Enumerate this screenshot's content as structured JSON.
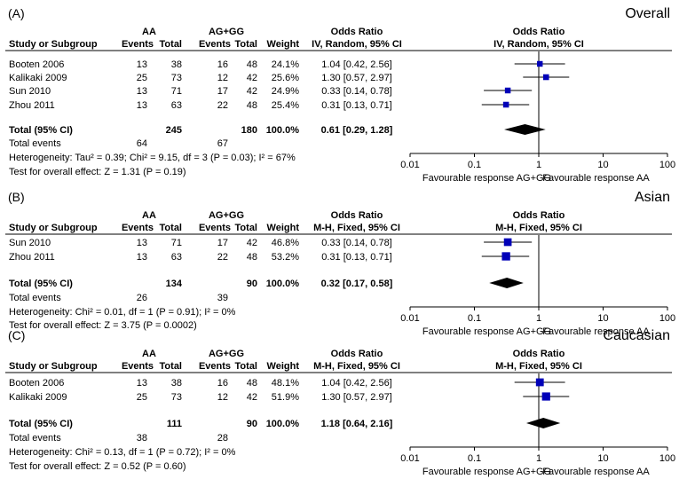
{
  "chart_data": [
    {
      "type": "forest",
      "panel_label": "(A)",
      "title": "Overall",
      "columns": {
        "study": "Study or Subgroup",
        "group1": "AA",
        "group2": "AG+GG",
        "events": "Events",
        "total": "Total",
        "weight": "Weight",
        "or_header": "Odds Ratio",
        "method": "IV, Random, 95% CI"
      },
      "studies": [
        {
          "name": "Booten 2006",
          "e1": "13",
          "t1": "38",
          "e2": "16",
          "t2": "48",
          "weight_label": "24.1%",
          "or_label": "1.04 [0.42, 2.56]",
          "weight": 24.1,
          "or": 1.04,
          "lo": 0.42,
          "hi": 2.56
        },
        {
          "name": "Kalikaki 2009",
          "e1": "25",
          "t1": "73",
          "e2": "12",
          "t2": "42",
          "weight_label": "25.6%",
          "or_label": "1.30 [0.57, 2.97]",
          "weight": 25.6,
          "or": 1.3,
          "lo": 0.57,
          "hi": 2.97
        },
        {
          "name": "Sun 2010",
          "e1": "13",
          "t1": "71",
          "e2": "17",
          "t2": "42",
          "weight_label": "24.9%",
          "or_label": "0.33 [0.14, 0.78]",
          "weight": 24.9,
          "or": 0.33,
          "lo": 0.14,
          "hi": 0.78
        },
        {
          "name": "Zhou 2011",
          "e1": "13",
          "t1": "63",
          "e2": "22",
          "t2": "48",
          "weight_label": "25.4%",
          "or_label": "0.31 [0.13, 0.71]",
          "weight": 25.4,
          "or": 0.31,
          "lo": 0.13,
          "hi": 0.71
        }
      ],
      "total": {
        "label": "Total (95% CI)",
        "t1": "245",
        "t2": "180",
        "weight_label": "100.0%",
        "or_label": "0.61 [0.29, 1.28]",
        "or": 0.61,
        "lo": 0.29,
        "hi": 1.28
      },
      "total_events": {
        "label": "Total events",
        "e1": "64",
        "e2": "67"
      },
      "heterogeneity": "Heterogeneity: Tau² = 0.39; Chi² = 9.15, df = 3 (P = 0.03); I² = 67%",
      "overall_effect": "Test for overall effect: Z = 1.31 (P = 0.19)",
      "axis": {
        "ticks": [
          0.01,
          0.1,
          1,
          10,
          100
        ],
        "tick_labels": [
          "0.01",
          "0.1",
          "1",
          "10",
          "100"
        ],
        "scale": "log",
        "xlim": [
          0.01,
          100
        ]
      },
      "favours_left": "Favourable response AG+GG",
      "favours_right": "Favourable response AA"
    },
    {
      "type": "forest",
      "panel_label": "(B)",
      "title": "Asian",
      "columns": {
        "study": "Study or Subgroup",
        "group1": "AA",
        "group2": "AG+GG",
        "events": "Events",
        "total": "Total",
        "weight": "Weight",
        "or_header": "Odds Ratio",
        "method": "M-H, Fixed, 95% CI"
      },
      "studies": [
        {
          "name": "Sun 2010",
          "e1": "13",
          "t1": "71",
          "e2": "17",
          "t2": "42",
          "weight_label": "46.8%",
          "or_label": "0.33 [0.14, 0.78]",
          "weight": 46.8,
          "or": 0.33,
          "lo": 0.14,
          "hi": 0.78
        },
        {
          "name": "Zhou 2011",
          "e1": "13",
          "t1": "63",
          "e2": "22",
          "t2": "48",
          "weight_label": "53.2%",
          "or_label": "0.31 [0.13, 0.71]",
          "weight": 53.2,
          "or": 0.31,
          "lo": 0.13,
          "hi": 0.71
        }
      ],
      "total": {
        "label": "Total (95% CI)",
        "t1": "134",
        "t2": "90",
        "weight_label": "100.0%",
        "or_label": "0.32 [0.17, 0.58]",
        "or": 0.32,
        "lo": 0.17,
        "hi": 0.58
      },
      "total_events": {
        "label": "Total events",
        "e1": "26",
        "e2": "39"
      },
      "heterogeneity": "Heterogeneity: Chi² = 0.01, df = 1 (P = 0.91); I² = 0%",
      "overall_effect": "Test for overall effect: Z = 3.75 (P = 0.0002)",
      "axis": {
        "ticks": [
          0.01,
          0.1,
          1,
          10,
          100
        ],
        "tick_labels": [
          "0.01",
          "0.1",
          "1",
          "10",
          "100"
        ],
        "scale": "log",
        "xlim": [
          0.01,
          100
        ]
      },
      "favours_left": "Favourable response AG+GG",
      "favours_right": "Favourable response AA"
    },
    {
      "type": "forest",
      "panel_label": "(C)",
      "title": "Caucasian",
      "columns": {
        "study": "Study or Subgroup",
        "group1": "AA",
        "group2": "AG+GG",
        "events": "Events",
        "total": "Total",
        "weight": "Weight",
        "or_header": "Odds Ratio",
        "method": "M-H, Fixed, 95% CI"
      },
      "studies": [
        {
          "name": "Booten 2006",
          "e1": "13",
          "t1": "38",
          "e2": "16",
          "t2": "48",
          "weight_label": "48.1%",
          "or_label": "1.04 [0.42, 2.56]",
          "weight": 48.1,
          "or": 1.04,
          "lo": 0.42,
          "hi": 2.56
        },
        {
          "name": "Kalikaki 2009",
          "e1": "25",
          "t1": "73",
          "e2": "12",
          "t2": "42",
          "weight_label": "51.9%",
          "or_label": "1.30 [0.57, 2.97]",
          "weight": 51.9,
          "or": 1.3,
          "lo": 0.57,
          "hi": 2.97
        }
      ],
      "total": {
        "label": "Total (95% CI)",
        "t1": "111",
        "t2": "90",
        "weight_label": "100.0%",
        "or_label": "1.18 [0.64, 2.16]",
        "or": 1.18,
        "lo": 0.64,
        "hi": 2.16
      },
      "total_events": {
        "label": "Total events",
        "e1": "38",
        "e2": "28"
      },
      "heterogeneity": "Heterogeneity: Chi² = 0.13, df = 1 (P = 0.72); I² = 0%",
      "overall_effect": "Test for overall effect: Z = 0.52 (P = 0.60)",
      "axis": {
        "ticks": [
          0.01,
          0.1,
          1,
          10,
          100
        ],
        "tick_labels": [
          "0.01",
          "0.1",
          "1",
          "10",
          "100"
        ],
        "scale": "log",
        "xlim": [
          0.01,
          100
        ]
      },
      "favours_left": "Favourable response AG+GG",
      "favours_right": "Favourable response AA"
    }
  ]
}
